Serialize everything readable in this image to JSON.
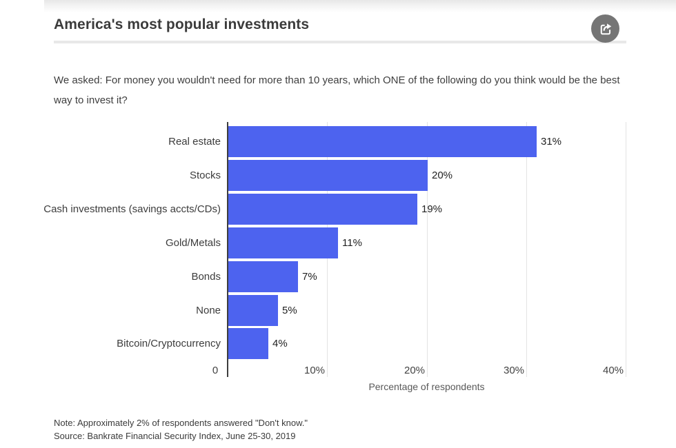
{
  "card": {
    "title": "America's most popular investments",
    "subtitle": "We asked: For money you wouldn't need for more than 10 years, which ONE of the following do you think would be the best way to invest it?",
    "share_button": {
      "icon": "share-icon"
    },
    "notes": {
      "line1": "Note: Approximately 2% of respondents answered \"Don't know.\"",
      "line2": "Source: Bankrate Financial Security Index, June 25-30, 2019"
    }
  },
  "chart_data": {
    "type": "bar",
    "orientation": "horizontal",
    "title": "America's most popular investments",
    "categories": [
      "Real estate",
      "Stocks",
      "Cash investments (savings accts/CDs)",
      "Gold/Metals",
      "Bonds",
      "None",
      "Bitcoin/Cryptocurrency"
    ],
    "values": [
      31,
      20,
      19,
      11,
      7,
      5,
      4
    ],
    "value_labels": [
      "31%",
      "20%",
      "19%",
      "11%",
      "7%",
      "5%",
      "4%"
    ],
    "xlabel": "Percentage of respondents",
    "ylabel": "",
    "xlim": [
      0,
      40
    ],
    "xticks": [
      {
        "value": 0,
        "label": "0"
      },
      {
        "value": 10,
        "label": "10%"
      },
      {
        "value": 20,
        "label": "20%"
      },
      {
        "value": 30,
        "label": "30%"
      },
      {
        "value": 40,
        "label": "40%"
      }
    ],
    "grid": true,
    "legend": false,
    "bar_color": "#4d63ef",
    "axis_line_color": "#3d3d3d",
    "gridline_color": "#e3e3e3"
  }
}
